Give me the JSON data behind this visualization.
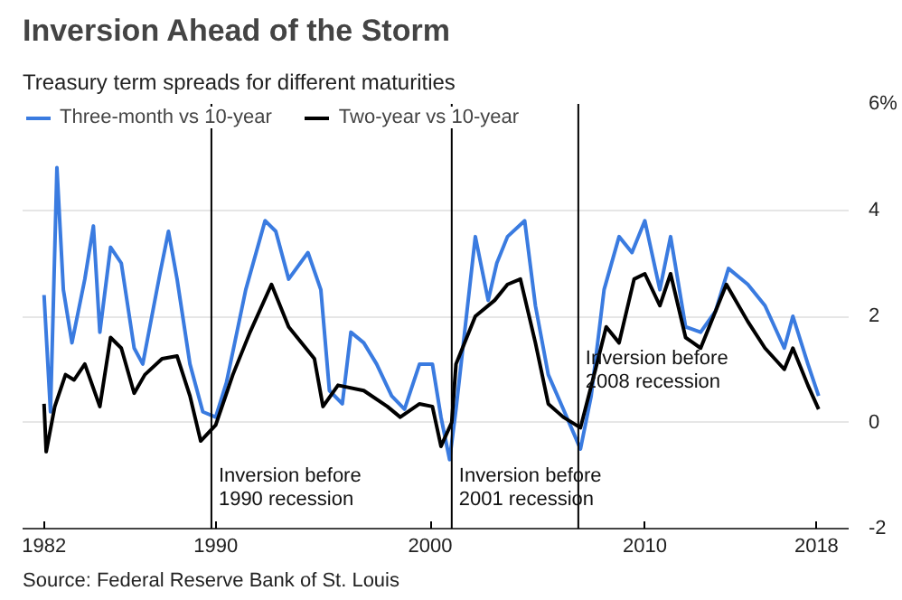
{
  "chart_data": {
    "type": "line",
    "title": "Inversion Ahead of the Storm",
    "subtitle": "Treasury term spreads for different maturities",
    "series": [
      {
        "name": "Three-month vs 10-year",
        "color": "#3a7be0",
        "x": [
          1982.0,
          1982.3,
          1982.6,
          1982.9,
          1983.3,
          1983.9,
          1984.3,
          1984.6,
          1985.1,
          1985.6,
          1986.2,
          1986.6,
          1987.4,
          1987.8,
          1988.2,
          1988.8,
          1989.4,
          1990.0,
          1990.5,
          1991.4,
          1992.3,
          1992.8,
          1993.4,
          1994.3,
          1994.9,
          1995.3,
          1995.9,
          1996.3,
          1996.9,
          1997.5,
          1998.2,
          1998.8,
          1999.5,
          2000.1,
          2000.5,
          2000.9,
          2001.2,
          2002.1,
          2002.7,
          2003.1,
          2003.6,
          2004.4,
          2004.9,
          2005.5,
          2006.2,
          2007.0,
          2007.5,
          2008.1,
          2008.8,
          2009.4,
          2010.0,
          2010.7,
          2011.2,
          2011.9,
          2012.6,
          2013.3,
          2013.9,
          2014.8,
          2015.6,
          2016.5,
          2016.9,
          2017.6,
          2018.1
        ],
        "values": [
          2.4,
          0.2,
          4.8,
          2.5,
          1.5,
          2.7,
          3.7,
          1.7,
          3.3,
          3.0,
          1.4,
          1.1,
          2.8,
          3.6,
          2.7,
          1.1,
          0.2,
          0.1,
          0.75,
          2.5,
          3.8,
          3.6,
          2.7,
          3.2,
          2.5,
          0.6,
          0.35,
          1.7,
          1.5,
          1.1,
          0.5,
          0.25,
          1.1,
          1.1,
          0.1,
          -0.7,
          0.25,
          3.5,
          2.3,
          3.0,
          3.5,
          3.8,
          2.2,
          0.9,
          0.25,
          -0.5,
          0.5,
          2.5,
          3.5,
          3.2,
          3.8,
          2.5,
          3.5,
          1.8,
          1.7,
          2.1,
          2.9,
          2.6,
          2.2,
          1.4,
          2.0,
          1.1,
          0.5
        ]
      },
      {
        "name": "Two-year vs 10-year",
        "color": "#000000",
        "x": [
          1982.0,
          1982.1,
          1982.5,
          1983.0,
          1983.4,
          1983.9,
          1984.6,
          1985.1,
          1985.6,
          1986.2,
          1986.7,
          1987.5,
          1988.2,
          1988.8,
          1989.3,
          1990.0,
          1990.8,
          1991.6,
          1992.6,
          1993.4,
          1994.6,
          1995.0,
          1995.7,
          1996.9,
          1998.0,
          1998.6,
          1999.5,
          2000.1,
          2000.5,
          2001.0,
          2001.2,
          2002.1,
          2003.0,
          2003.6,
          2004.2,
          2004.9,
          2005.5,
          2006.2,
          2007.0,
          2007.7,
          2008.2,
          2008.8,
          2009.5,
          2010.0,
          2010.7,
          2011.2,
          2011.9,
          2012.6,
          2013.8,
          2014.8,
          2015.6,
          2016.5,
          2016.9,
          2017.6,
          2018.1
        ],
        "values": [
          0.35,
          -0.55,
          0.3,
          0.9,
          0.8,
          1.1,
          0.3,
          1.6,
          1.4,
          0.55,
          0.9,
          1.2,
          1.25,
          0.5,
          -0.35,
          -0.05,
          0.9,
          1.7,
          2.6,
          1.8,
          1.2,
          0.3,
          0.7,
          0.6,
          0.3,
          0.1,
          0.35,
          0.3,
          -0.45,
          0.0,
          1.1,
          2.0,
          2.3,
          2.6,
          2.7,
          1.5,
          0.35,
          0.1,
          -0.1,
          1.0,
          1.8,
          1.5,
          2.7,
          2.8,
          2.2,
          2.8,
          1.6,
          1.4,
          2.6,
          1.9,
          1.4,
          1.0,
          1.4,
          0.7,
          0.25
        ]
      }
    ],
    "xlim": [
      1981.0,
      2019.5
    ],
    "xticks": [
      1982,
      1990,
      2000,
      2010,
      2018
    ],
    "ylim": [
      -2,
      6
    ],
    "yticks": [
      -2,
      0,
      2,
      4,
      {
        "value": 6,
        "label": "6%"
      }
    ],
    "grid": "y",
    "legend": "top left",
    "ref_lines": [
      {
        "axis": "x",
        "value": 1989.8,
        "color": "#000000"
      },
      {
        "axis": "x",
        "value": 2001.0,
        "color": "#000000"
      },
      {
        "axis": "x",
        "value": 2006.9,
        "color": "#000000"
      }
    ],
    "annotations": [
      {
        "text": "Inversion before 1990 recession",
        "x": 1989.8,
        "y": -0.8
      },
      {
        "text": "Inversion before 2001 recession",
        "x": 2001.0,
        "y": -0.8
      },
      {
        "text": "Inversion before 2008 recession",
        "x": 2006.9,
        "y": 1.4
      },
      "Source: Federal Reserve Bank of St. Louis"
    ]
  }
}
